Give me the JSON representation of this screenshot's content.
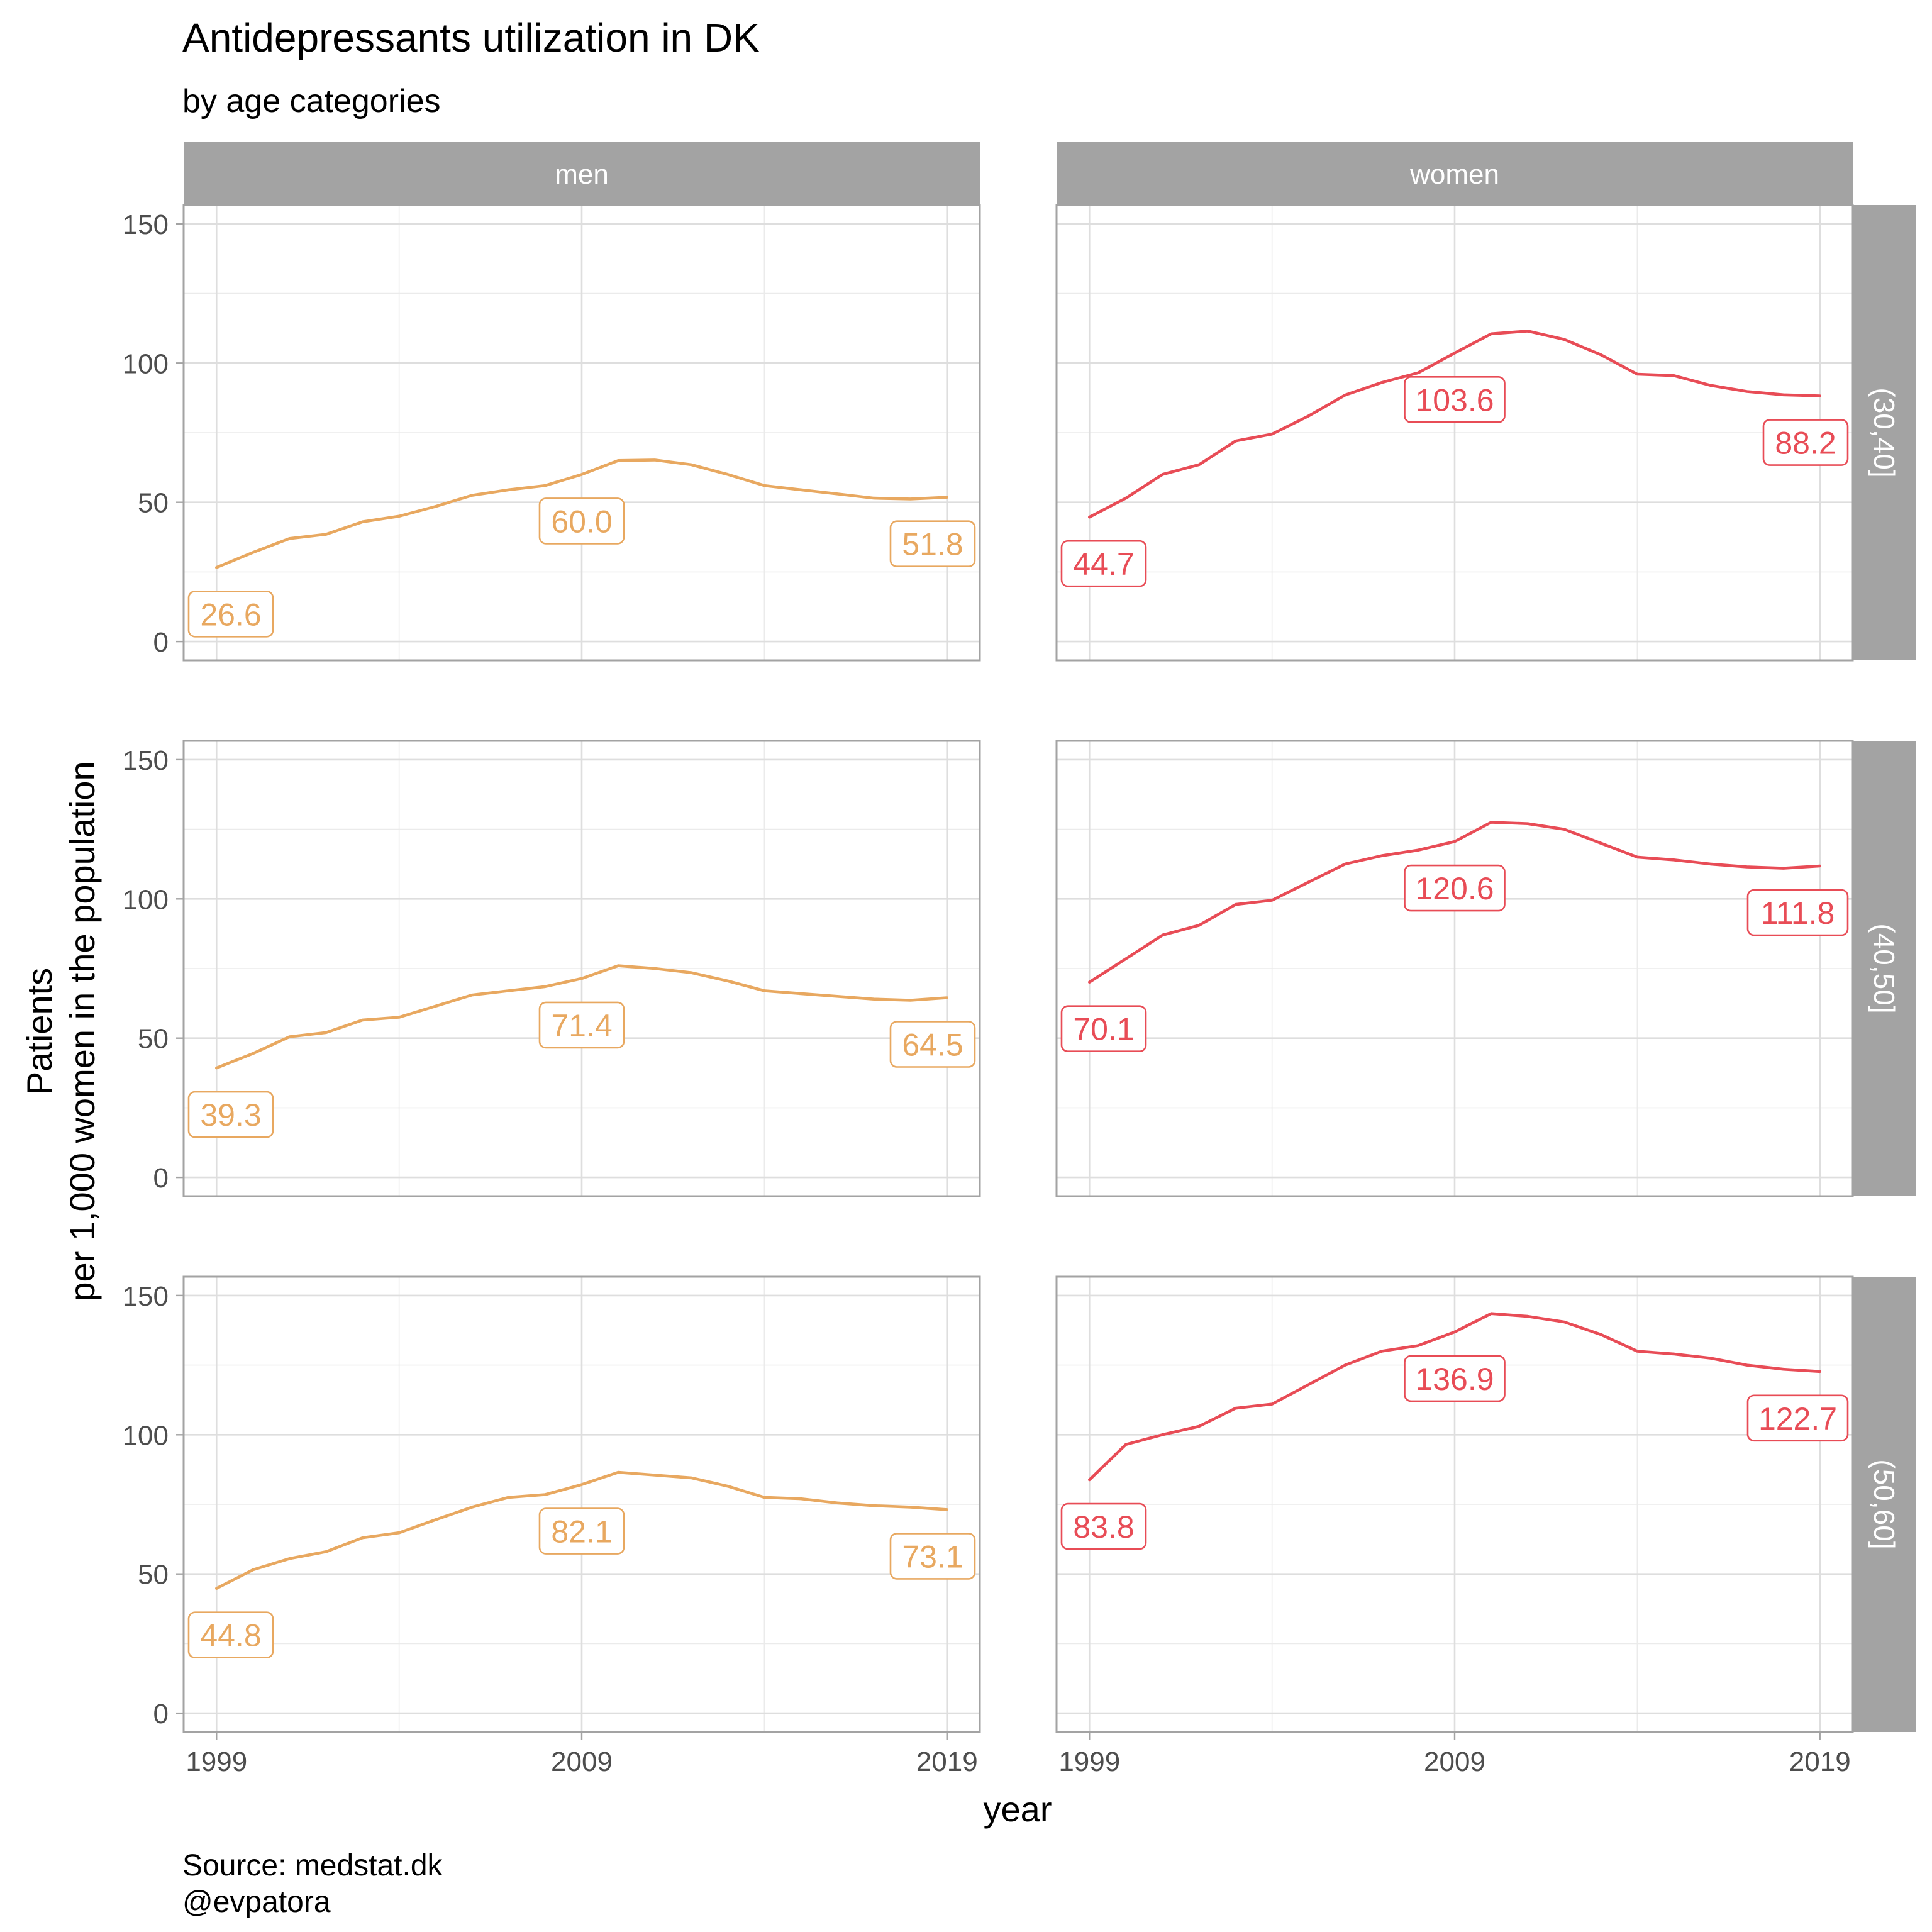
{
  "title": "Antidepressants utilization in DK",
  "subtitle": "by age categories",
  "caption_line1": "Source: medstat.dk",
  "caption_line2": "@evpatora",
  "chart_data": {
    "type": "line",
    "title": "Antidepressants utilization in DK",
    "subtitle": "by age categories",
    "xlabel": "year",
    "ylabel_line1": "Patients",
    "ylabel_line2": "per 1,000 women in the population",
    "xlim": [
      1999,
      2019
    ],
    "ylim": [
      0,
      150
    ],
    "x_ticks": [
      1999,
      2009,
      2019
    ],
    "y_ticks": [
      0,
      50,
      100,
      150
    ],
    "grid": true,
    "legend": "none",
    "columns": [
      "men",
      "women"
    ],
    "rows": [
      "(30,40]",
      "(40,50]",
      "(50,60]"
    ],
    "colors": {
      "men": "#E8A860",
      "women": "#E84C56"
    },
    "x": [
      1999,
      2000,
      2001,
      2002,
      2003,
      2004,
      2005,
      2006,
      2007,
      2008,
      2009,
      2010,
      2011,
      2012,
      2013,
      2014,
      2015,
      2016,
      2017,
      2018,
      2019
    ],
    "panels": [
      {
        "column": "men",
        "row": "(30,40]",
        "values": [
          26.6,
          32.0,
          37.0,
          38.5,
          43.0,
          45.0,
          48.5,
          52.5,
          54.5,
          56.0,
          60.0,
          65.0,
          65.2,
          63.5,
          60.0,
          56.0,
          54.5,
          53.0,
          51.5,
          51.2,
          51.8
        ],
        "labels": [
          {
            "year": 1999,
            "value": 26.6,
            "text": "26.6"
          },
          {
            "year": 2009,
            "value": 60.0,
            "text": "60.0"
          },
          {
            "year": 2019,
            "value": 51.8,
            "text": "51.8"
          }
        ]
      },
      {
        "column": "women",
        "row": "(30,40]",
        "values": [
          44.7,
          51.5,
          60.0,
          63.5,
          72.0,
          74.5,
          81.0,
          88.5,
          93.0,
          96.5,
          103.6,
          110.5,
          111.5,
          108.5,
          103.0,
          96.0,
          95.5,
          92.0,
          89.8,
          88.6,
          88.2
        ],
        "labels": [
          {
            "year": 1999,
            "value": 44.7,
            "text": "44.7"
          },
          {
            "year": 2009,
            "value": 103.6,
            "text": "103.6"
          },
          {
            "year": 2019,
            "value": 88.2,
            "text": "88.2"
          }
        ]
      },
      {
        "column": "men",
        "row": "(40,50]",
        "values": [
          39.3,
          44.5,
          50.5,
          52.0,
          56.5,
          57.5,
          61.5,
          65.5,
          67.0,
          68.5,
          71.4,
          76.0,
          75.0,
          73.5,
          70.5,
          67.0,
          66.0,
          65.0,
          64.0,
          63.6,
          64.5
        ],
        "labels": [
          {
            "year": 1999,
            "value": 39.3,
            "text": "39.3"
          },
          {
            "year": 2009,
            "value": 71.4,
            "text": "71.4"
          },
          {
            "year": 2019,
            "value": 64.5,
            "text": "64.5"
          }
        ]
      },
      {
        "column": "women",
        "row": "(40,50]",
        "values": [
          70.1,
          78.5,
          87.0,
          90.5,
          98.0,
          99.5,
          106.0,
          112.5,
          115.5,
          117.5,
          120.6,
          127.5,
          127.0,
          125.0,
          120.0,
          115.0,
          114.0,
          112.5,
          111.5,
          111.0,
          111.8
        ],
        "labels": [
          {
            "year": 1999,
            "value": 70.1,
            "text": "70.1"
          },
          {
            "year": 2009,
            "value": 120.6,
            "text": "120.6"
          },
          {
            "year": 2019,
            "value": 111.8,
            "text": "111.8"
          }
        ]
      },
      {
        "column": "men",
        "row": "(50,60]",
        "values": [
          44.8,
          51.5,
          55.5,
          58.0,
          63.0,
          64.8,
          69.5,
          74.0,
          77.5,
          78.5,
          82.1,
          86.5,
          85.5,
          84.5,
          81.5,
          77.5,
          77.0,
          75.5,
          74.5,
          74.0,
          73.1
        ],
        "labels": [
          {
            "year": 1999,
            "value": 44.8,
            "text": "44.8"
          },
          {
            "year": 2009,
            "value": 82.1,
            "text": "82.1"
          },
          {
            "year": 2019,
            "value": 73.1,
            "text": "73.1"
          }
        ]
      },
      {
        "column": "women",
        "row": "(50,60]",
        "values": [
          83.8,
          96.5,
          100.0,
          103.0,
          109.5,
          111.0,
          118.0,
          125.0,
          130.0,
          132.0,
          136.9,
          143.5,
          142.5,
          140.5,
          136.0,
          130.0,
          129.0,
          127.5,
          125.0,
          123.5,
          122.7
        ],
        "labels": [
          {
            "year": 1999,
            "value": 83.8,
            "text": "83.8"
          },
          {
            "year": 2009,
            "value": 136.9,
            "text": "136.9"
          },
          {
            "year": 2019,
            "value": 122.7,
            "text": "122.7"
          }
        ]
      }
    ]
  }
}
